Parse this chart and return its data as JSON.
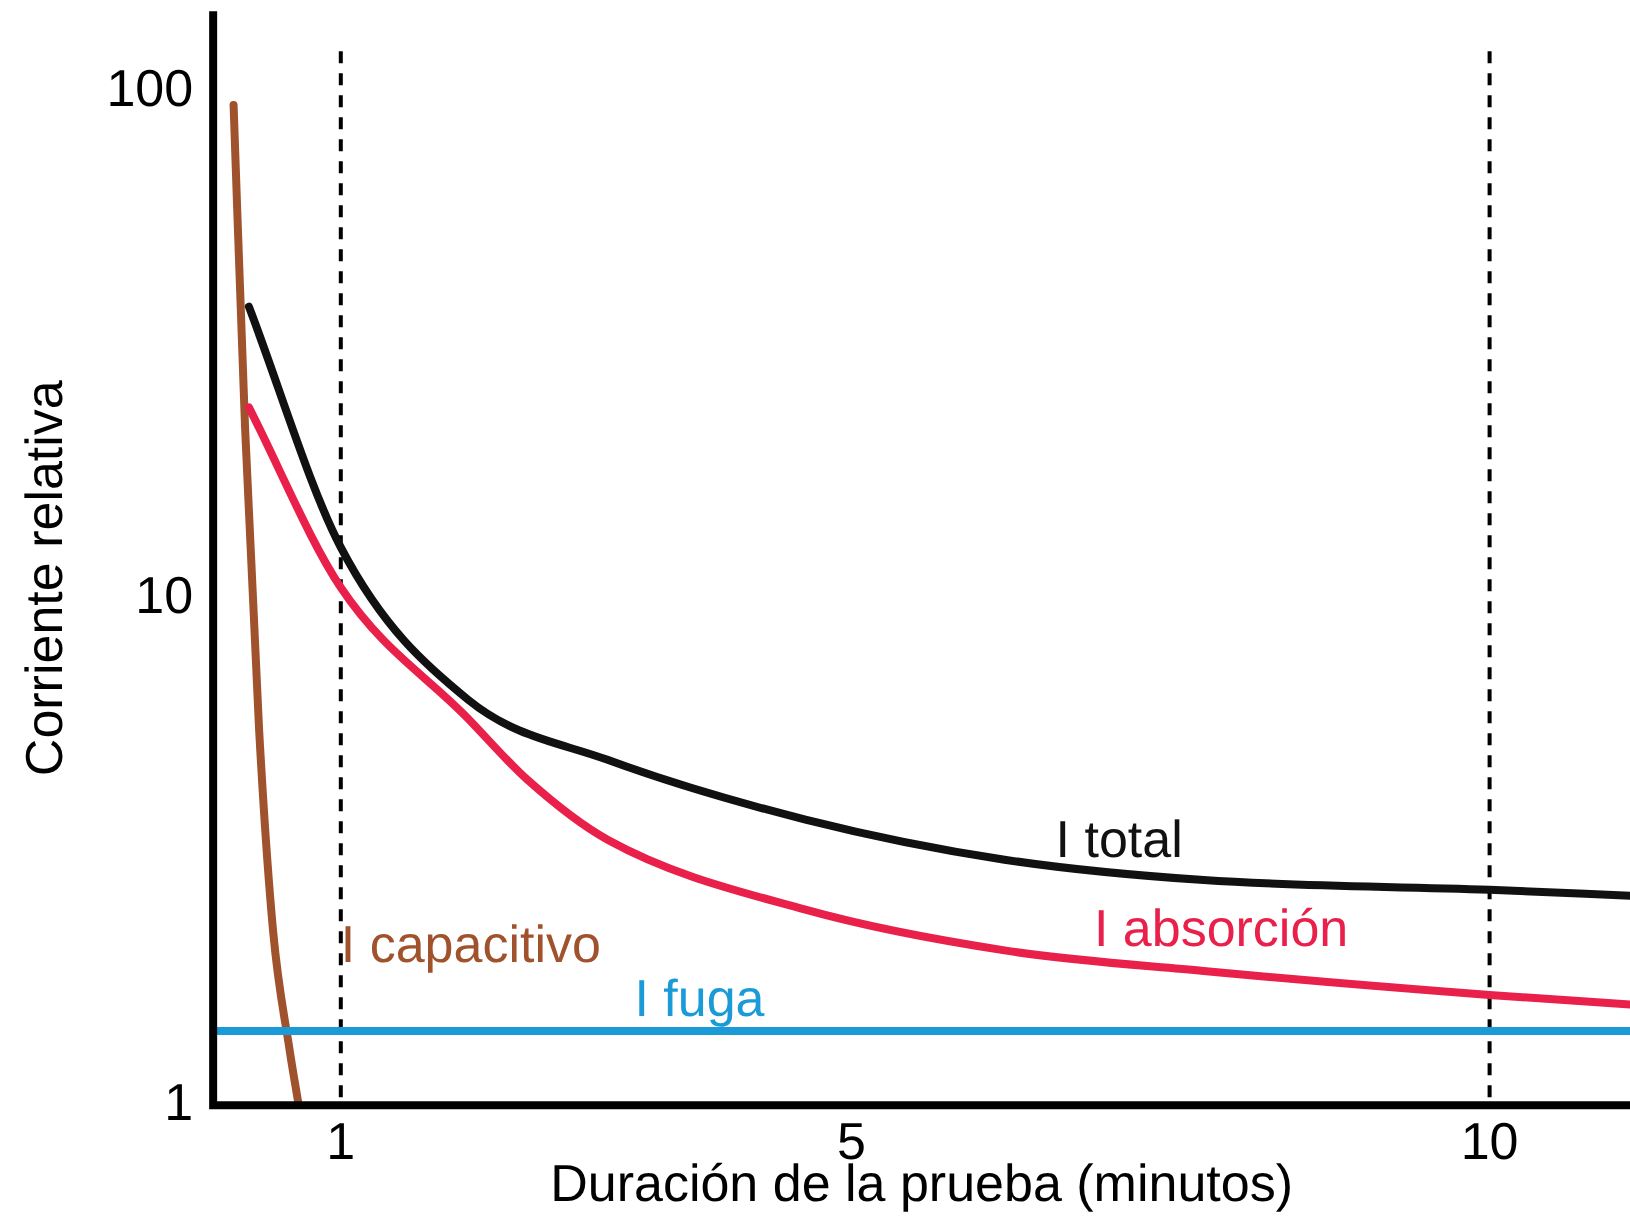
{
  "chart_data": {
    "type": "line",
    "xlabel": "Duración de la prueba (minutos)",
    "ylabel": "Corriente relativa",
    "log": "y",
    "grid": false,
    "legend": false,
    "marker": "none",
    "line_style": "solid",
    "xlim": [
      0,
      11.1
    ],
    "xticks": [
      1,
      5,
      10
    ],
    "ylim": [
      1,
      120
    ],
    "yticks": [
      1,
      10,
      100
    ],
    "ref_lines": [
      {
        "axis": "x",
        "value": 1,
        "color": "#000000",
        "line_style": "dashed"
      },
      {
        "axis": "x",
        "value": 10,
        "color": "#000000",
        "line_style": "dashed"
      }
    ],
    "series": [
      {
        "name": "I total",
        "color": "#111111",
        "x": [
          0.28,
          1,
          2,
          3.09,
          4.64,
          6.2,
          7.76,
          10,
          11.1
        ],
        "values": [
          37.6,
          12.6,
          6.3,
          4.8,
          3.66,
          3.05,
          2.78,
          2.66,
          2.59
        ]
      },
      {
        "name": "I absorción",
        "color": "#e8204a",
        "x": [
          0.28,
          1,
          2,
          2.46,
          3.09,
          4.64,
          6.2,
          7.76,
          10,
          11.1
        ],
        "values": [
          23.8,
          10.5,
          5.78,
          4.39,
          3.34,
          2.43,
          2.02,
          1.84,
          1.65,
          1.58
        ]
      },
      {
        "name": "I fuga",
        "color": "#1a9ad6",
        "x": [
          0,
          11.1
        ],
        "values": [
          1.4,
          1.4
        ]
      },
      {
        "name": "I capacitivo",
        "color": "#a0522d",
        "x": [
          0.16,
          0.25,
          0.36,
          0.47,
          0.6,
          0.67
        ],
        "values": [
          94,
          21.7,
          5.5,
          2.2,
          1.28,
          1
        ]
      }
    ]
  }
}
